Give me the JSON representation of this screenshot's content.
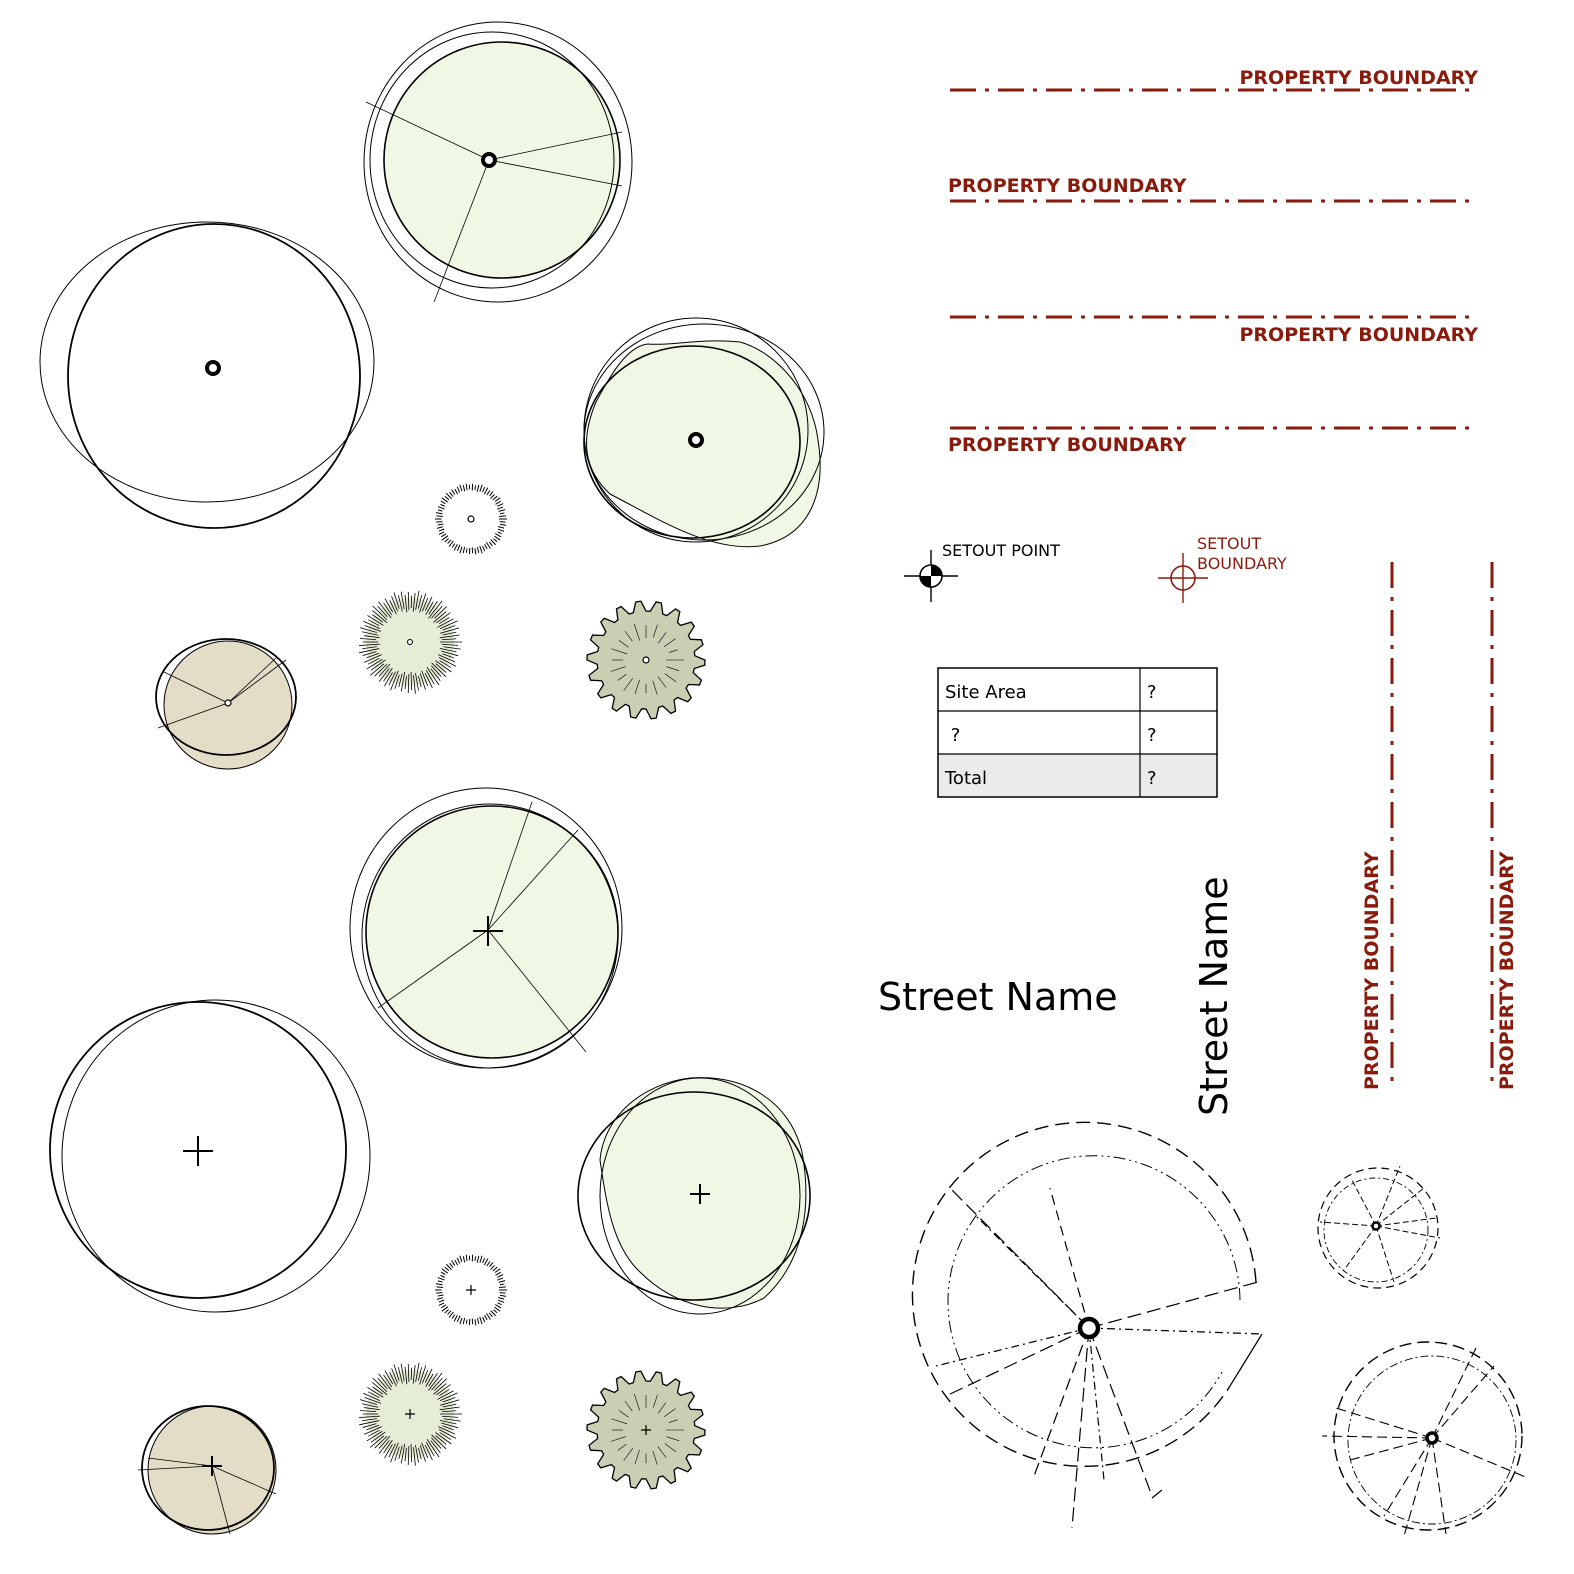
{
  "colors": {
    "boundary": "#8a1a0c",
    "ink": "#000000",
    "canopy_light": "#f0f7e4",
    "canopy_tan": "#e3dcc6",
    "canopy_sage": "#c9cfb2",
    "table_total_bg": "#ebebeb"
  },
  "property_boundaries": [
    {
      "label": "PROPERTY BOUNDARY"
    },
    {
      "label": "PROPERTY BOUNDARY"
    },
    {
      "label": "PROPERTY BOUNDARY"
    },
    {
      "label": "PROPERTY BOUNDARY"
    },
    {
      "label": "PROPERTY BOUNDARY"
    },
    {
      "label": "PROPERTY BOUNDARY"
    }
  ],
  "setout": {
    "point_label": "SETOUT POINT",
    "boundary_label_line1": "SETOUT",
    "boundary_label_line2": "BOUNDARY"
  },
  "area_table": {
    "rows": [
      {
        "label": "Site Area",
        "value": "?"
      },
      {
        "label": " ?",
        "value": "?"
      },
      {
        "label": "Total",
        "value": "?"
      }
    ]
  },
  "street_labels": {
    "horizontal": "Street Name",
    "vertical": "Street Name"
  }
}
